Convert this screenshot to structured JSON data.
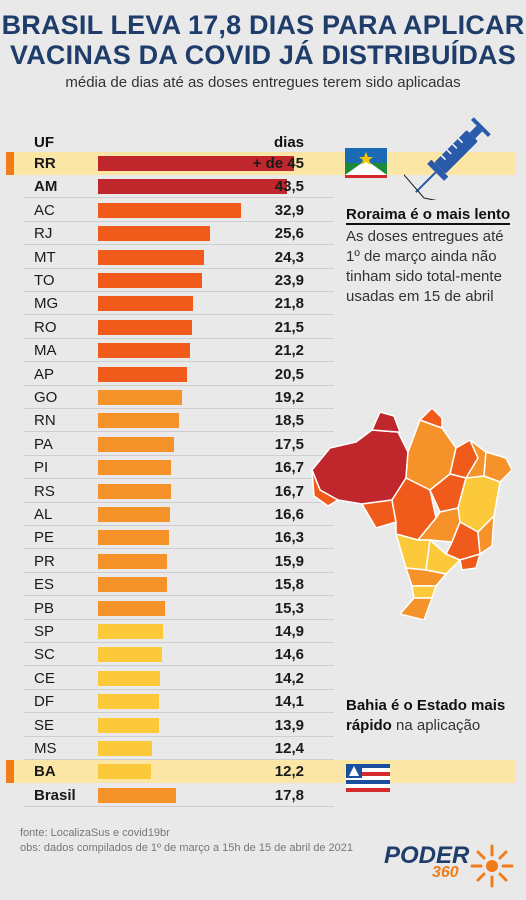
{
  "header": {
    "title_line1": "BRASIL LEVA 17,8 DIAS PARA APLICAR",
    "title_line2": "VACINAS DA COVID JÁ DISTRIBUÍDAS",
    "subtitle": "média de dias até as doses entregues terem sido aplicadas"
  },
  "columns": {
    "uf": "UF",
    "dias": "dias"
  },
  "colors": {
    "dark_red": "#c0272d",
    "red_orange": "#f05a1a",
    "orange": "#f5922a",
    "yellow": "#fbc93a",
    "highlight": "#fbe6a6",
    "marker": "#f07d1a",
    "title_blue": "#1e3d6b"
  },
  "chart_data": {
    "type": "bar",
    "title": "BRASIL LEVA 17,8 DIAS PARA APLICAR VACINAS DA COVID JÁ DISTRIBUÍDAS",
    "subtitle": "média de dias até as doses entregues terem sido aplicadas",
    "xlabel": "dias",
    "ylabel": "UF",
    "categories": [
      "RR",
      "AM",
      "AC",
      "RJ",
      "MT",
      "TO",
      "MG",
      "RO",
      "MA",
      "AP",
      "GO",
      "RN",
      "PA",
      "PI",
      "RS",
      "AL",
      "PE",
      "PR",
      "ES",
      "PB",
      "SP",
      "SC",
      "CE",
      "DF",
      "SE",
      "MS",
      "BA",
      "Brasil"
    ],
    "values": [
      45,
      43.5,
      32.9,
      25.6,
      24.3,
      23.9,
      21.8,
      21.5,
      21.2,
      20.5,
      19.2,
      18.5,
      17.5,
      16.7,
      16.7,
      16.6,
      16.3,
      15.9,
      15.8,
      15.3,
      14.9,
      14.6,
      14.2,
      14.1,
      13.9,
      12.4,
      12.2,
      17.8
    ],
    "labels": [
      "+ de 45",
      "43,5",
      "32,9",
      "25,6",
      "24,3",
      "23,9",
      "21,8",
      "21,5",
      "21,2",
      "20,5",
      "19,2",
      "18,5",
      "17,5",
      "16,7",
      "16,7",
      "16,6",
      "16,3",
      "15,9",
      "15,8",
      "15,3",
      "14,9",
      "14,6",
      "14,2",
      "14,1",
      "13,9",
      "12,4",
      "12,2",
      "17,8"
    ],
    "colors": [
      "dark_red",
      "dark_red",
      "red_orange",
      "red_orange",
      "red_orange",
      "red_orange",
      "red_orange",
      "red_orange",
      "red_orange",
      "red_orange",
      "orange",
      "orange",
      "orange",
      "orange",
      "orange",
      "orange",
      "orange",
      "orange",
      "orange",
      "orange",
      "yellow",
      "yellow",
      "yellow",
      "yellow",
      "yellow",
      "yellow",
      "yellow",
      "orange"
    ],
    "highlighted": [
      "RR",
      "BA"
    ],
    "bold": [
      "RR",
      "AM",
      "BA",
      "Brasil"
    ],
    "xlim": [
      0,
      45
    ]
  },
  "notes": {
    "roraima_title": "Roraima é o mais lento",
    "roraima_body": "As doses entregues até 1º de março ainda não tinham sido total-mente usadas em 15 de abril",
    "bahia_bold": "Bahia é o Estado mais rápido",
    "bahia_rest": " na aplicação"
  },
  "footer": {
    "source": "fonte: LocalizaSus e covid19br",
    "obs": "obs: dados compilados de 1º de março a 15h de 15 de abril de 2021",
    "logo": "PODER",
    "logo_sub": "360"
  }
}
